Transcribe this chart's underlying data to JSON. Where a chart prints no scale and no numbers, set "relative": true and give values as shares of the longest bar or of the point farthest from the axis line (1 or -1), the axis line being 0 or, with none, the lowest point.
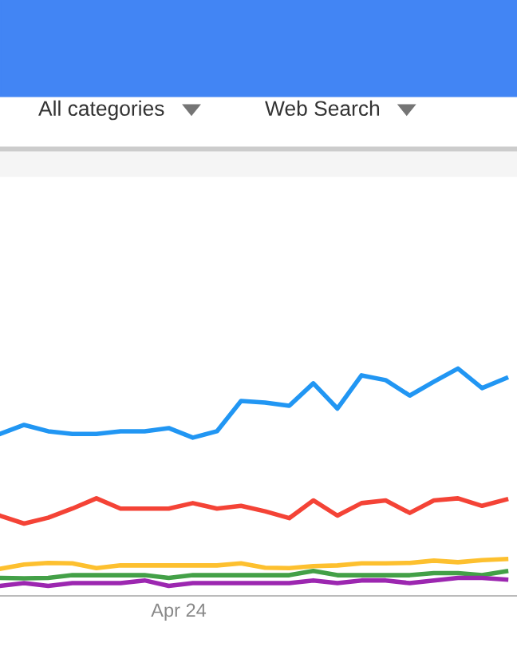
{
  "chart_data": {
    "type": "line",
    "relative": true,
    "legend": false,
    "marker": "none",
    "line_style": "solid",
    "annotations": [
      "All categories",
      "Web Search",
      "Apr 24"
    ],
    "categories": [
      null,
      null,
      null,
      null,
      null,
      null,
      null,
      null,
      null,
      null,
      null,
      null,
      null,
      null,
      null,
      null,
      null,
      null,
      null,
      null,
      null,
      null
    ],
    "series": [
      {
        "color": "#2196f3",
        "values": [
          0.712,
          0.752,
          0.724,
          0.712,
          0.712,
          0.724,
          0.724,
          0.738,
          0.696,
          0.724,
          0.857,
          0.85,
          0.836,
          0.935,
          0.824,
          0.97,
          0.949,
          0.881,
          0.942,
          1,
          0.914,
          0.958
        ]
      },
      {
        "color": "#f44336",
        "values": [
          0.353,
          0.318,
          0.344,
          0.384,
          0.429,
          0.384,
          0.384,
          0.384,
          0.408,
          0.384,
          0.396,
          0.372,
          0.342,
          0.42,
          0.353,
          0.408,
          0.42,
          0.365,
          0.42,
          0.429,
          0.396,
          0.424
        ]
      },
      {
        "color": "#fdc02f",
        "values": [
          0.119,
          0.138,
          0.145,
          0.143,
          0.122,
          0.134,
          0.134,
          0.134,
          0.134,
          0.134,
          0.143,
          0.124,
          0.122,
          0.131,
          0.134,
          0.143,
          0.143,
          0.145,
          0.155,
          0.148,
          0.157,
          0.162
        ]
      },
      {
        "color": "#43a047",
        "values": [
          0.079,
          0.077,
          0.079,
          0.091,
          0.091,
          0.091,
          0.091,
          0.079,
          0.091,
          0.091,
          0.091,
          0.091,
          0.091,
          0.11,
          0.091,
          0.091,
          0.091,
          0.091,
          0.1,
          0.1,
          0.091,
          0.108
        ]
      },
      {
        "color": "#9c27b0",
        "values": [
          0.044,
          0.056,
          0.044,
          0.056,
          0.056,
          0.056,
          0.068,
          0.044,
          0.056,
          0.056,
          0.056,
          0.056,
          0.056,
          0.068,
          0.056,
          0.068,
          0.068,
          0.056,
          0.068,
          0.079,
          0.079,
          0.072
        ]
      }
    ]
  }
}
